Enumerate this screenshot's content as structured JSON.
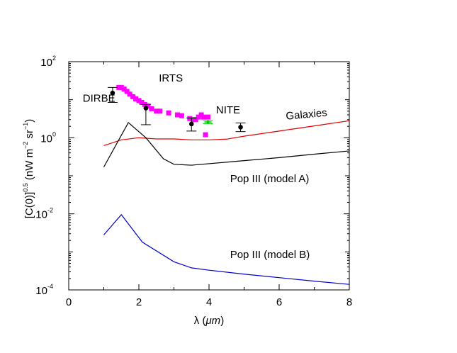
{
  "chart_data": {
    "type": "line",
    "xlabel": "λ (μm)",
    "ylabel": "[C(0)]0.5 (nW m−2 sr−1)",
    "x_ticks": [
      0,
      2,
      4,
      6,
      8
    ],
    "y_ticks": [
      {
        "base": "10",
        "exp": "2",
        "value": 100
      },
      {
        "base": "10",
        "exp": "0",
        "value": 1
      },
      {
        "base": "10",
        "exp": "-2",
        "value": 0.01
      },
      {
        "base": "10",
        "exp": "-4",
        "value": 0.0001
      }
    ],
    "xlim": [
      0,
      8
    ],
    "ylim": [
      0.0001,
      100
    ],
    "y_scale": "log",
    "grid": false,
    "series": [
      {
        "name": "Galaxies",
        "color": "#e00000",
        "kind": "line",
        "x": [
          1.0,
          1.5,
          2.0,
          2.5,
          3.0,
          3.5,
          4.0,
          4.5,
          5.0,
          6.0,
          7.0,
          8.0
        ],
        "y": [
          0.62,
          0.88,
          1.0,
          0.93,
          0.93,
          0.88,
          0.88,
          0.92,
          1.1,
          1.5,
          2.05,
          2.8
        ]
      },
      {
        "name": "Pop III (model A)",
        "color": "#000000",
        "kind": "line",
        "x": [
          1.0,
          1.7,
          2.2,
          2.7,
          3.0,
          3.5,
          5.0,
          6.0,
          7.0,
          8.0
        ],
        "y": [
          0.17,
          2.5,
          1.0,
          0.28,
          0.2,
          0.19,
          0.25,
          0.3,
          0.37,
          0.45
        ]
      },
      {
        "name": "Pop III (model B)",
        "color": "#0000c8",
        "kind": "line",
        "x": [
          1.0,
          1.5,
          2.1,
          3.0,
          3.5,
          4.0,
          5.0,
          6.0,
          7.0,
          8.0
        ],
        "y": [
          0.0028,
          0.0095,
          0.0018,
          0.00055,
          0.00038,
          0.00033,
          0.00026,
          0.00021,
          0.00017,
          0.00014
        ]
      },
      {
        "name": "IRTS",
        "color": "#ff00ff",
        "kind": "squares",
        "x": [
          1.43,
          1.5,
          1.58,
          1.66,
          1.74,
          1.83,
          1.91,
          2.0,
          2.08,
          2.17,
          2.26,
          2.36,
          2.5,
          2.6,
          2.85,
          3.1,
          3.22,
          3.45,
          3.55,
          3.62,
          3.7,
          3.78,
          3.85,
          3.9,
          3.97
        ],
        "y": [
          21,
          21,
          19,
          16.5,
          14,
          12,
          10.5,
          9.5,
          8.5,
          7.5,
          6.8,
          5.8,
          5.0,
          5.0,
          4.5,
          4.0,
          3.8,
          3.2,
          3.0,
          3.0,
          3.5,
          4.0,
          3.5,
          1.2,
          3.5
        ]
      },
      {
        "name": "DIRBE",
        "color": "#000000",
        "kind": "errorbar",
        "x": [
          1.25,
          2.2,
          3.5
        ],
        "y": [
          15.0,
          6.0,
          2.3
        ],
        "ylo": [
          8.5,
          2.2,
          1.5
        ],
        "yhi": [
          21.0,
          7.5,
          3.3
        ]
      },
      {
        "name": "NITE",
        "color": "#000000",
        "kind": "errorbar",
        "x": [
          4.9
        ],
        "y": [
          1.9
        ],
        "ylo": [
          1.45
        ],
        "yhi": [
          2.45
        ]
      },
      {
        "name": "",
        "color": "#00cc00",
        "kind": "errorbar",
        "x": [
          3.97
        ],
        "y": [
          2.6
        ],
        "ylo": [
          2.35
        ],
        "yhi": [
          2.85
        ]
      }
    ],
    "annotations": [
      {
        "text": "DIRBE",
        "x": 0.4,
        "y": 8.8
      },
      {
        "text": "IRTS",
        "x": 2.57,
        "y": 30
      },
      {
        "text": "NITE",
        "x": 4.2,
        "y": 4.4
      },
      {
        "text": "Galaxies",
        "x": 6.2,
        "y": 3.0,
        "rotate": -5
      },
      {
        "text": "Pop III (model A)",
        "x": 4.6,
        "y": 0.068
      },
      {
        "text": "Pop III (model B)",
        "x": 4.6,
        "y": 0.00069
      }
    ]
  }
}
